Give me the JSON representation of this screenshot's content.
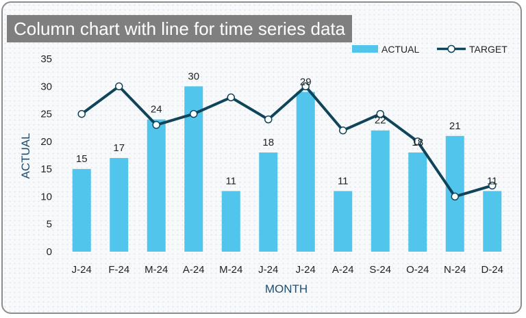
{
  "title": "Column chart with line for time series data",
  "chart_data": {
    "type": "bar",
    "categories": [
      "J-24",
      "F-24",
      "M-24",
      "A-24",
      "M-24",
      "J-24",
      "J-24",
      "A-24",
      "S-24",
      "O-24",
      "N-24",
      "D-24"
    ],
    "series": [
      {
        "name": "ACTUAL",
        "type": "bar",
        "values": [
          15,
          17,
          24,
          30,
          11,
          18,
          29,
          11,
          22,
          18,
          21,
          11
        ],
        "color": "#52c5ec"
      },
      {
        "name": "TARGET",
        "type": "line",
        "values": [
          25,
          30,
          23,
          25,
          28,
          24,
          30,
          22,
          25,
          20,
          10,
          12
        ],
        "color": "#0f4459"
      }
    ],
    "data_labels": [
      "15",
      "17",
      "24",
      "30",
      "11",
      "18",
      "29",
      "11",
      "22",
      "18",
      "21",
      "11"
    ],
    "xlabel": "MONTH",
    "ylabel": "ACTUAL",
    "ylim": [
      0,
      35
    ],
    "yticks": [
      "0",
      "5",
      "10",
      "15",
      "20",
      "25",
      "30",
      "35"
    ],
    "legend_position": "top-right",
    "grid": false
  }
}
